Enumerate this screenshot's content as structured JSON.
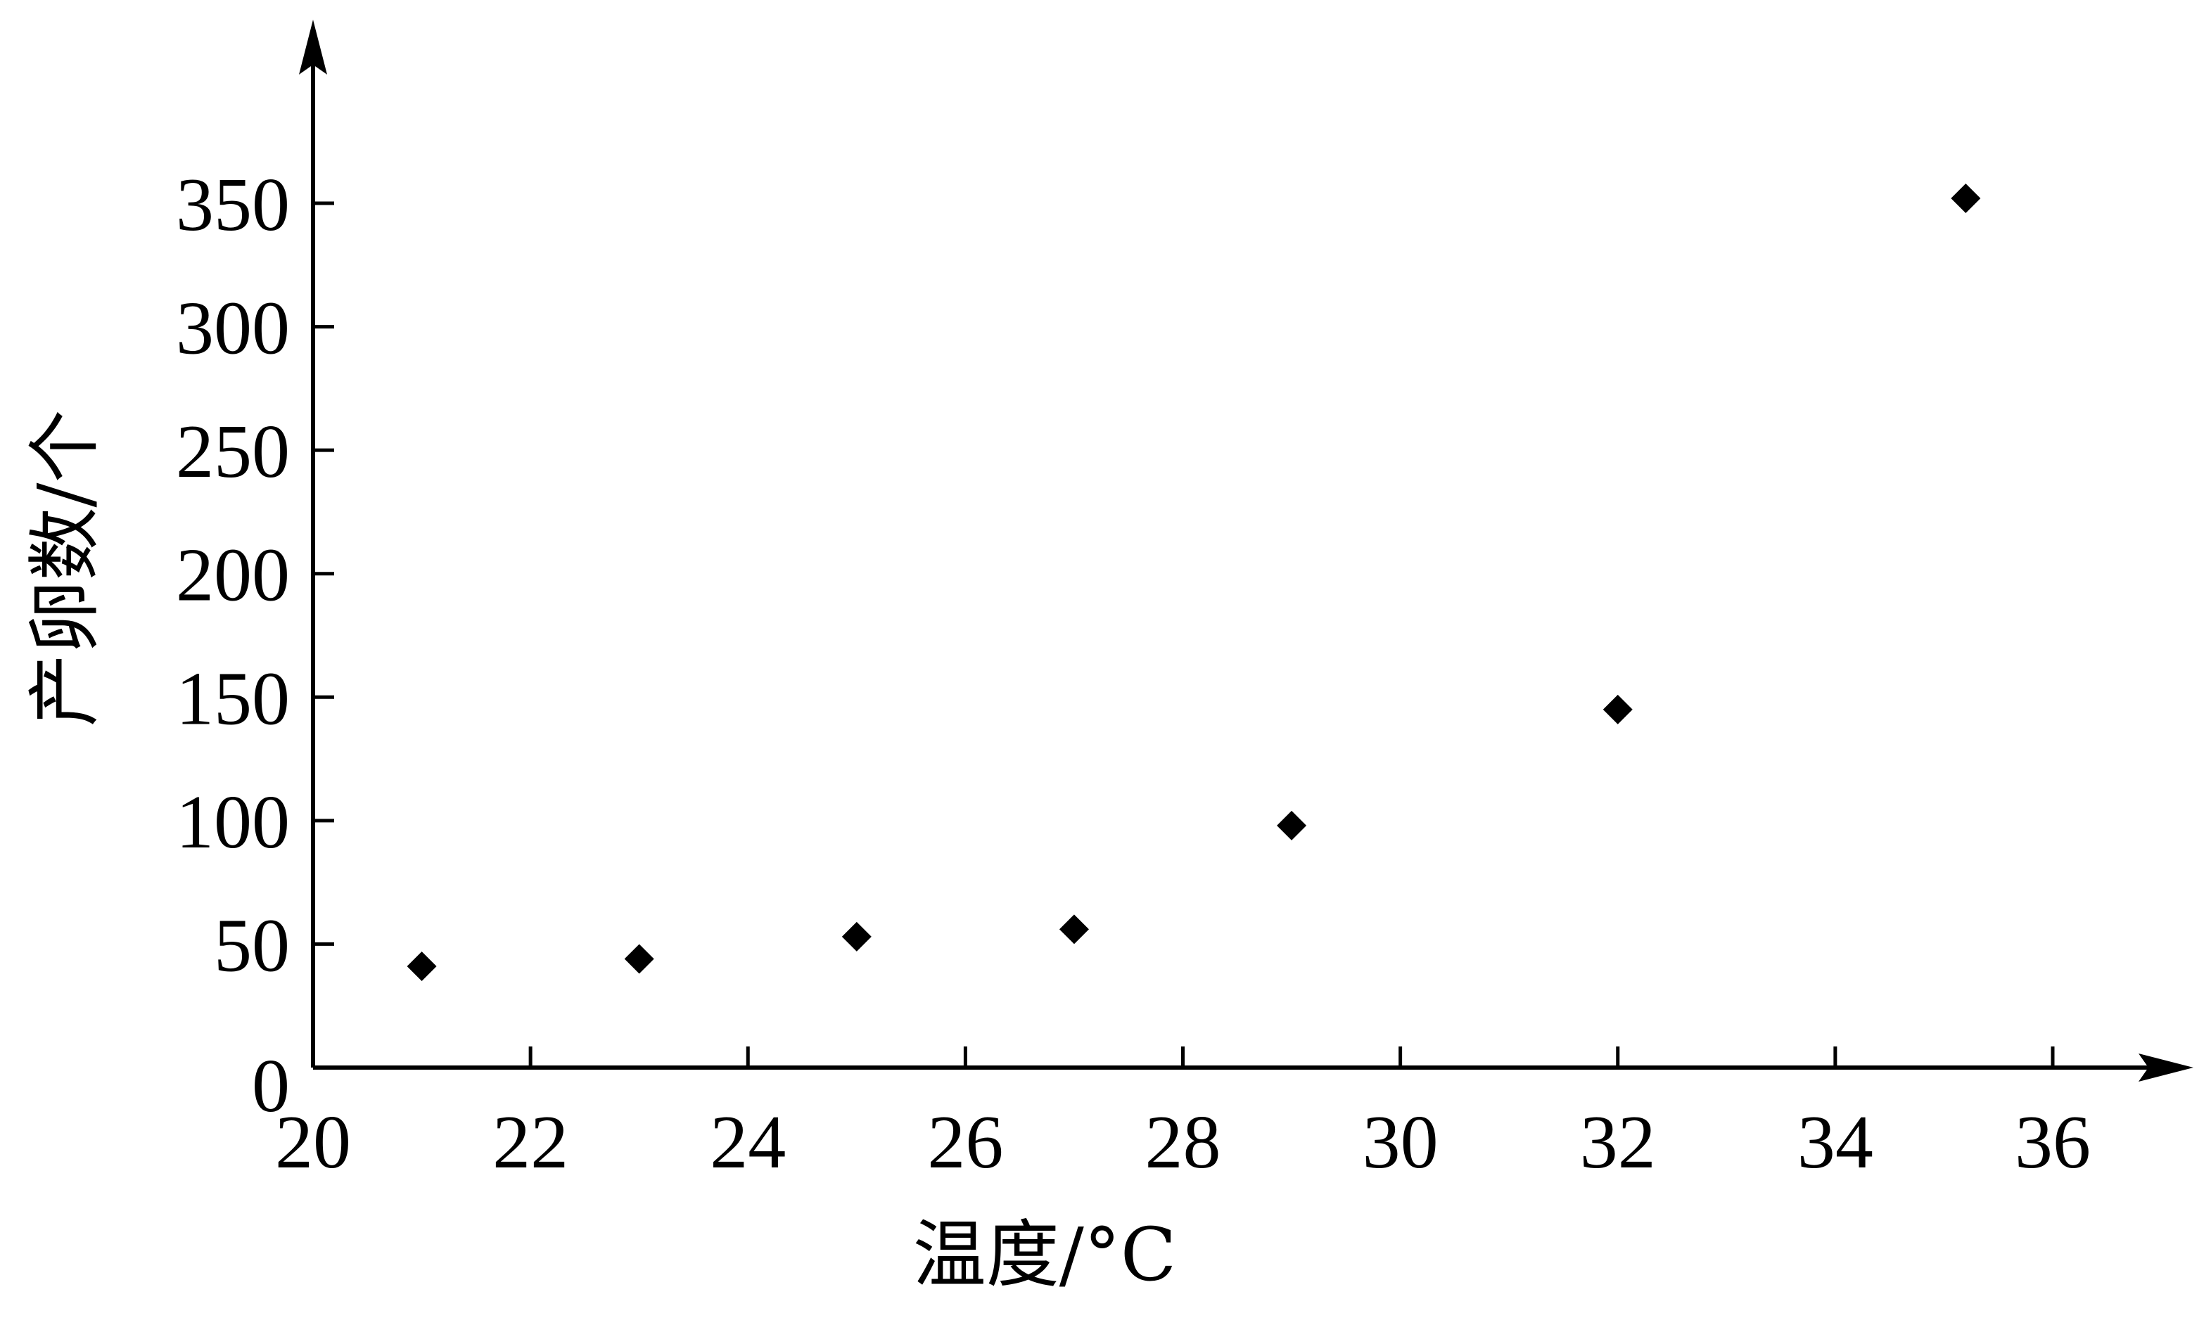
{
  "chart_data": {
    "type": "scatter",
    "xlabel": "温度/°C",
    "ylabel": "产卵数/个",
    "x_ticks": [
      20,
      22,
      24,
      26,
      28,
      30,
      32,
      34,
      36
    ],
    "y_ticks": [
      0,
      50,
      100,
      150,
      200,
      250,
      300,
      350
    ],
    "xlim": [
      20,
      37
    ],
    "ylim": [
      0,
      350
    ],
    "grid": false,
    "marker": "diamond",
    "marker_color": "#000000",
    "points": [
      {
        "x": 21,
        "y": 41
      },
      {
        "x": 23,
        "y": 44
      },
      {
        "x": 25,
        "y": 53
      },
      {
        "x": 27,
        "y": 56
      },
      {
        "x": 29,
        "y": 98
      },
      {
        "x": 32,
        "y": 145
      },
      {
        "x": 35.2,
        "y": 352
      }
    ]
  }
}
